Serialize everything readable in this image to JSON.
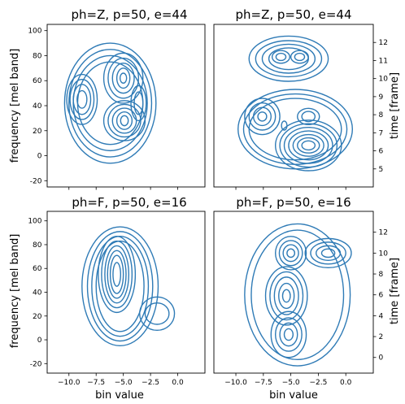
{
  "colors": {
    "contour": "#2f7bb6",
    "axes": "#000000",
    "background": "#ffffff"
  },
  "chart_data": [
    {
      "type": "contour",
      "title": "ph=Z, p=50, e=44",
      "xlabel": "",
      "ylabel": "frequency [mel band]",
      "y_axis_side": "left",
      "xlim": [
        -12,
        2.5
      ],
      "ylim": [
        -25,
        105
      ],
      "yticks": [
        -20,
        0,
        20,
        40,
        60,
        80,
        100
      ],
      "xticks": [],
      "contours": [
        {
          "cx": -6.2,
          "cy": 42,
          "levels": [
            [
              4.2,
              48
            ],
            [
              3.8,
              43
            ],
            [
              3.4,
              38
            ],
            [
              3.0,
              33
            ]
          ]
        },
        {
          "cx": -8.8,
          "cy": 45,
          "levels": [
            [
              1.4,
              20
            ],
            [
              1.1,
              16
            ],
            [
              0.8,
              12
            ],
            [
              0.45,
              7
            ]
          ]
        },
        {
          "cx": -5.0,
          "cy": 62,
          "levels": [
            [
              1.8,
              20
            ],
            [
              1.4,
              16
            ],
            [
              1.0,
              12
            ],
            [
              0.6,
              8
            ],
            [
              0.3,
              4
            ]
          ]
        },
        {
          "cx": -4.9,
          "cy": 28,
          "levels": [
            [
              1.9,
              16
            ],
            [
              1.5,
              13
            ],
            [
              1.1,
              10
            ],
            [
              0.7,
              7
            ],
            [
              0.35,
              4
            ]
          ]
        },
        {
          "cx": -3.6,
          "cy": 42,
          "levels": [
            [
              0.7,
              14
            ],
            [
              0.4,
              9
            ]
          ]
        }
      ]
    },
    {
      "type": "contour",
      "title": "ph=Z, p=50, e=44",
      "xlabel": "",
      "ylabel": "time [frame]",
      "y_axis_side": "right",
      "xlim": [
        -12,
        2.5
      ],
      "ylim": [
        4,
        13
      ],
      "yticks": [
        5,
        6,
        7,
        8,
        9,
        10,
        11,
        12
      ],
      "xticks": [],
      "contours": [
        {
          "cx": -5.2,
          "cy": 11.1,
          "levels": [
            [
              3.6,
              1.25
            ],
            [
              3.0,
              1.0
            ],
            [
              2.4,
              0.8
            ],
            [
              1.8,
              0.6
            ]
          ]
        },
        {
          "cx": -5.9,
          "cy": 11.2,
          "levels": [
            [
              0.8,
              0.35
            ],
            [
              0.45,
              0.2
            ]
          ]
        },
        {
          "cx": -4.2,
          "cy": 11.2,
          "levels": [
            [
              0.8,
              0.35
            ],
            [
              0.45,
              0.2
            ]
          ]
        },
        {
          "cx": -4.6,
          "cy": 7.2,
          "levels": [
            [
              5.2,
              2.2
            ],
            [
              4.7,
              1.95
            ],
            [
              4.2,
              1.7
            ]
          ]
        },
        {
          "cx": -7.6,
          "cy": 7.9,
          "levels": [
            [
              1.6,
              1.0
            ],
            [
              1.2,
              0.75
            ],
            [
              0.8,
              0.5
            ],
            [
              0.4,
              0.25
            ]
          ]
        },
        {
          "cx": -3.4,
          "cy": 6.3,
          "levels": [
            [
              3.0,
              1.4
            ],
            [
              2.6,
              1.2
            ],
            [
              2.2,
              1.0
            ],
            [
              1.8,
              0.8
            ],
            [
              1.4,
              0.6
            ],
            [
              1.0,
              0.42
            ],
            [
              0.6,
              0.25
            ]
          ]
        },
        {
          "cx": -3.4,
          "cy": 7.9,
          "levels": [
            [
              1.0,
              0.45
            ],
            [
              0.6,
              0.28
            ]
          ]
        },
        {
          "cx": -5.6,
          "cy": 7.4,
          "levels": [
            [
              0.25,
              0.25
            ]
          ]
        }
      ]
    },
    {
      "type": "contour",
      "title": "ph=F, p=50, e=16",
      "xlabel": "bin value",
      "ylabel": "frequency [mel band]",
      "y_axis_side": "left",
      "xlim": [
        -12,
        2.5
      ],
      "ylim": [
        -28,
        108
      ],
      "yticks": [
        -20,
        0,
        20,
        40,
        60,
        80,
        100
      ],
      "xticks": [
        -10.0,
        -7.5,
        -5.0,
        -2.5,
        0.0
      ],
      "xticklabels": [
        "−10.0",
        "−7.5",
        "−5.0",
        "−2.5",
        "0.0"
      ],
      "contours": [
        {
          "cx": -5.3,
          "cy": 45,
          "levels": [
            [
              3.5,
              50
            ],
            [
              3.0,
              46
            ],
            [
              2.6,
              42
            ],
            [
              2.2,
              38
            ]
          ]
        },
        {
          "cx": -5.6,
          "cy": 55,
          "levels": [
            [
              1.7,
              32
            ],
            [
              1.4,
              28
            ],
            [
              1.1,
              24
            ],
            [
              0.85,
              20
            ],
            [
              0.6,
              16
            ],
            [
              0.35,
              10
            ]
          ]
        },
        {
          "cx": -1.9,
          "cy": 22,
          "levels": [
            [
              1.6,
              14
            ],
            [
              1.1,
              9
            ]
          ]
        }
      ]
    },
    {
      "type": "contour",
      "title": "ph=F, p=50, e=16",
      "xlabel": "bin value",
      "ylabel": "time [frame]",
      "y_axis_side": "right",
      "xlim": [
        -12,
        2.5
      ],
      "ylim": [
        -1.5,
        14
      ],
      "yticks": [
        0,
        2,
        4,
        6,
        8,
        10,
        12
      ],
      "xticks": [
        -10.0,
        -7.5,
        -5.0,
        -2.5,
        0.0
      ],
      "xticklabels": [
        "−10.0",
        "−7.5",
        "−5.0",
        "−2.5",
        "0.0"
      ],
      "contours": [
        {
          "cx": -4.4,
          "cy": 6.0,
          "levels": [
            [
              4.8,
              6.8
            ],
            [
              4.2,
              6.2
            ]
          ]
        },
        {
          "cx": -1.6,
          "cy": 10.0,
          "levels": [
            [
              2.1,
              1.4
            ],
            [
              1.6,
              1.05
            ],
            [
              1.1,
              0.7
            ],
            [
              0.6,
              0.4
            ]
          ]
        },
        {
          "cx": -5.0,
          "cy": 10.0,
          "levels": [
            [
              1.4,
              1.6
            ],
            [
              1.05,
              1.2
            ],
            [
              0.7,
              0.8
            ],
            [
              0.35,
              0.4
            ]
          ]
        },
        {
          "cx": -5.4,
          "cy": 5.9,
          "levels": [
            [
              1.9,
              2.8
            ],
            [
              1.5,
              2.3
            ],
            [
              1.1,
              1.8
            ],
            [
              0.7,
              1.2
            ],
            [
              0.35,
              0.6
            ]
          ]
        },
        {
          "cx": -5.2,
          "cy": 2.2,
          "levels": [
            [
              1.6,
              2.2
            ],
            [
              1.2,
              1.6
            ],
            [
              0.8,
              1.1
            ],
            [
              0.4,
              0.55
            ]
          ]
        }
      ]
    }
  ]
}
